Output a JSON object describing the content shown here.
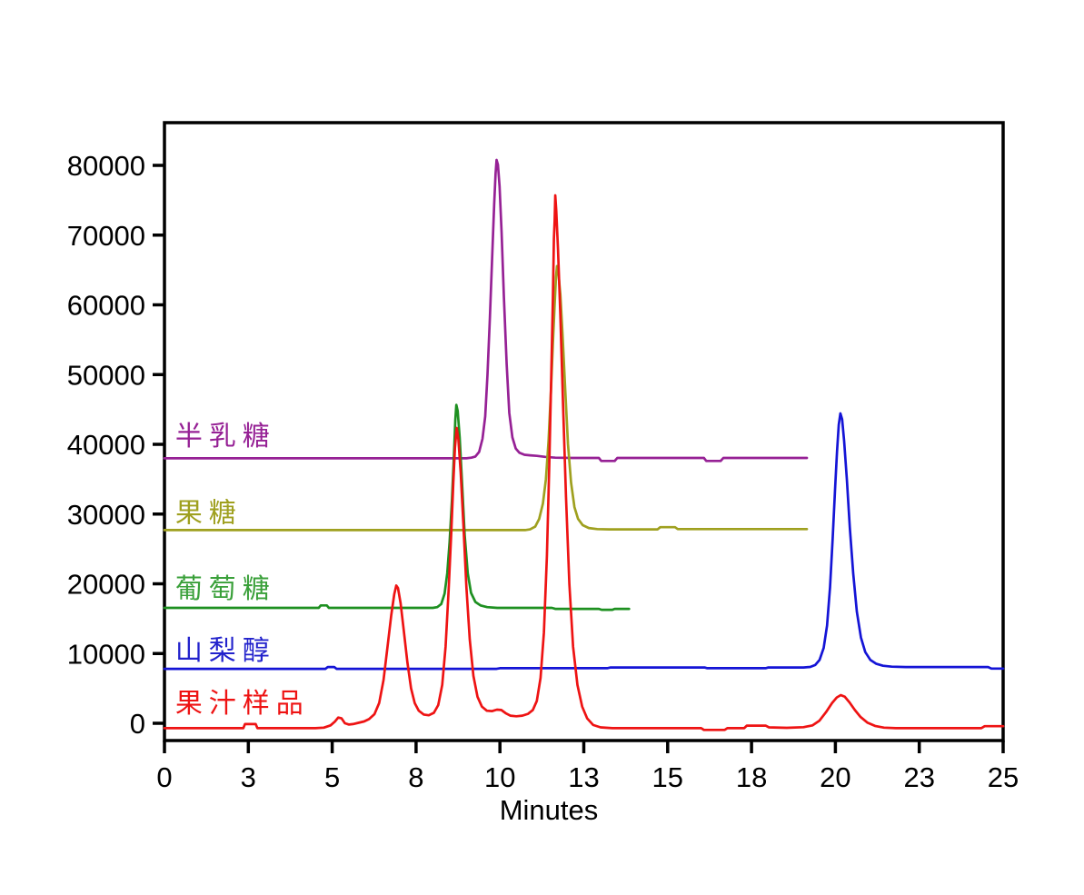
{
  "figure": {
    "background": "#ffffff",
    "axis_color": "#000000"
  },
  "chart_data": {
    "type": "line",
    "title": "",
    "xlabel": "Minutes",
    "ylabel": "",
    "xlim": [
      0,
      25
    ],
    "ylim": [
      -2475,
      86125
    ],
    "grid": false,
    "legend_position": "inline-left-above-each-trace",
    "x_ticks": {
      "positions": [
        0,
        2.5,
        5,
        7.5,
        10,
        12.5,
        15,
        17.5,
        20,
        22.5,
        25
      ],
      "labels": [
        "0",
        "3",
        "5",
        "8",
        "10",
        "13",
        "15",
        "18",
        "20",
        "23",
        "25"
      ]
    },
    "y_ticks": {
      "positions": [
        0,
        10000,
        20000,
        30000,
        40000,
        50000,
        60000,
        70000,
        80000
      ],
      "labels": [
        "0",
        "10000",
        "20000",
        "30000",
        "40000",
        "50000",
        "60000",
        "70000",
        "80000"
      ]
    },
    "series": [
      {
        "id": "galactose",
        "name": "半乳糖",
        "color": "#962195",
        "baseline": 38000,
        "peaks": [
          {
            "t": 9.9,
            "value": 80780
          }
        ],
        "points": [
          [
            0,
            38000
          ],
          [
            9.0,
            38000
          ],
          [
            9.15,
            38080
          ],
          [
            9.27,
            38250
          ],
          [
            9.38,
            38900
          ],
          [
            9.48,
            40800
          ],
          [
            9.56,
            44000
          ],
          [
            9.63,
            50000
          ],
          [
            9.7,
            58000
          ],
          [
            9.77,
            67000
          ],
          [
            9.83,
            74500
          ],
          [
            9.87,
            78800
          ],
          [
            9.9,
            80780
          ],
          [
            9.94,
            80100
          ],
          [
            9.99,
            77000
          ],
          [
            10.05,
            70500
          ],
          [
            10.12,
            61000
          ],
          [
            10.2,
            51500
          ],
          [
            10.28,
            44500
          ],
          [
            10.37,
            41000
          ],
          [
            10.47,
            39400
          ],
          [
            10.58,
            38800
          ],
          [
            10.73,
            38500
          ],
          [
            10.9,
            38420
          ],
          [
            11.1,
            38350
          ],
          [
            11.35,
            38200
          ],
          [
            11.65,
            38080
          ],
          [
            12.15,
            38050
          ],
          [
            12.95,
            38050
          ],
          [
            13.02,
            37620
          ],
          [
            13.42,
            37620
          ],
          [
            13.5,
            38050
          ],
          [
            16.08,
            38050
          ],
          [
            16.15,
            37620
          ],
          [
            16.58,
            37620
          ],
          [
            16.66,
            38050
          ],
          [
            19.15,
            38050
          ]
        ]
      },
      {
        "id": "fructose",
        "name": "果糖",
        "color": "#9fa01f",
        "baseline": 27700,
        "peaks": [
          {
            "t": 11.7,
            "value": 65550
          }
        ],
        "points": [
          [
            0,
            27700
          ],
          [
            10.75,
            27700
          ],
          [
            10.9,
            27800
          ],
          [
            11.05,
            28200
          ],
          [
            11.17,
            29300
          ],
          [
            11.28,
            31500
          ],
          [
            11.37,
            35000
          ],
          [
            11.45,
            40500
          ],
          [
            11.52,
            47500
          ],
          [
            11.58,
            54500
          ],
          [
            11.63,
            60000
          ],
          [
            11.67,
            64000
          ],
          [
            11.7,
            65550
          ],
          [
            11.74,
            64800
          ],
          [
            11.8,
            61500
          ],
          [
            11.87,
            55500
          ],
          [
            11.95,
            47500
          ],
          [
            12.03,
            40000
          ],
          [
            12.12,
            34500
          ],
          [
            12.22,
            31000
          ],
          [
            12.33,
            29300
          ],
          [
            12.47,
            28400
          ],
          [
            12.65,
            28000
          ],
          [
            12.9,
            27850
          ],
          [
            13.25,
            27800
          ],
          [
            14.7,
            27800
          ],
          [
            14.78,
            28120
          ],
          [
            15.22,
            28120
          ],
          [
            15.3,
            27850
          ],
          [
            19.15,
            27850
          ]
        ]
      },
      {
        "id": "glucose",
        "name": "葡萄糖",
        "color": "#1e9021",
        "baseline": 16550,
        "peaks": [
          {
            "t": 8.7,
            "value": 45650
          }
        ],
        "points": [
          [
            0,
            16550
          ],
          [
            4.6,
            16550
          ],
          [
            4.66,
            16900
          ],
          [
            4.84,
            16900
          ],
          [
            4.9,
            16550
          ],
          [
            8.0,
            16550
          ],
          [
            8.13,
            16650
          ],
          [
            8.25,
            17100
          ],
          [
            8.35,
            18600
          ],
          [
            8.43,
            21500
          ],
          [
            8.5,
            26000
          ],
          [
            8.57,
            32000
          ],
          [
            8.63,
            38500
          ],
          [
            8.67,
            43500
          ],
          [
            8.7,
            45650
          ],
          [
            8.74,
            44800
          ],
          [
            8.8,
            41000
          ],
          [
            8.87,
            34500
          ],
          [
            8.95,
            27000
          ],
          [
            9.04,
            21500
          ],
          [
            9.14,
            18700
          ],
          [
            9.27,
            17400
          ],
          [
            9.42,
            16900
          ],
          [
            9.62,
            16650
          ],
          [
            9.92,
            16550
          ],
          [
            11.55,
            16550
          ],
          [
            11.65,
            16400
          ],
          [
            12.95,
            16400
          ],
          [
            13.03,
            16280
          ],
          [
            13.35,
            16280
          ],
          [
            13.42,
            16400
          ],
          [
            13.85,
            16400
          ]
        ]
      },
      {
        "id": "sorbitol",
        "name": "山梨醇",
        "color": "#1414d6",
        "baseline": 7800,
        "peaks": [
          {
            "t": 20.15,
            "value": 44430
          }
        ],
        "points": [
          [
            0,
            7800
          ],
          [
            4.8,
            7800
          ],
          [
            4.87,
            8060
          ],
          [
            5.06,
            8060
          ],
          [
            5.13,
            7800
          ],
          [
            9.9,
            7800
          ],
          [
            10.0,
            7900
          ],
          [
            13.2,
            7900
          ],
          [
            13.3,
            8000
          ],
          [
            16.1,
            8000
          ],
          [
            16.18,
            7900
          ],
          [
            17.92,
            7900
          ],
          [
            18.0,
            8000
          ],
          [
            19.05,
            8000
          ],
          [
            19.25,
            8080
          ],
          [
            19.4,
            8350
          ],
          [
            19.53,
            9100
          ],
          [
            19.65,
            10800
          ],
          [
            19.75,
            14000
          ],
          [
            19.84,
            19500
          ],
          [
            19.92,
            26500
          ],
          [
            19.99,
            33500
          ],
          [
            20.05,
            39000
          ],
          [
            20.1,
            42800
          ],
          [
            20.15,
            44430
          ],
          [
            20.2,
            43600
          ],
          [
            20.26,
            40500
          ],
          [
            20.34,
            35000
          ],
          [
            20.43,
            28000
          ],
          [
            20.53,
            21500
          ],
          [
            20.64,
            16000
          ],
          [
            20.76,
            12300
          ],
          [
            20.89,
            10200
          ],
          [
            21.04,
            9100
          ],
          [
            21.21,
            8550
          ],
          [
            21.42,
            8250
          ],
          [
            21.68,
            8120
          ],
          [
            22.1,
            8060
          ],
          [
            24.55,
            8060
          ],
          [
            24.65,
            7850
          ],
          [
            25.0,
            7850
          ]
        ]
      },
      {
        "id": "juice-sample",
        "name": "果汁样品",
        "color": "#ee1313",
        "baseline": -700,
        "peaks": [
          {
            "t": 6.93,
            "value": 19750
          },
          {
            "t": 8.71,
            "value": 42350
          },
          {
            "t": 11.65,
            "value": 75700
          },
          {
            "t": 20.16,
            "value": 4040
          }
        ],
        "points": [
          [
            0,
            -700
          ],
          [
            2.35,
            -700
          ],
          [
            2.4,
            -120
          ],
          [
            2.72,
            -120
          ],
          [
            2.77,
            -700
          ],
          [
            4.5,
            -700
          ],
          [
            4.75,
            -620
          ],
          [
            4.95,
            -300
          ],
          [
            5.08,
            250
          ],
          [
            5.18,
            820
          ],
          [
            5.28,
            700
          ],
          [
            5.38,
            0
          ],
          [
            5.5,
            -180
          ],
          [
            5.62,
            -120
          ],
          [
            5.78,
            60
          ],
          [
            5.95,
            260
          ],
          [
            6.1,
            600
          ],
          [
            6.26,
            1300
          ],
          [
            6.4,
            2900
          ],
          [
            6.53,
            6200
          ],
          [
            6.65,
            11000
          ],
          [
            6.76,
            15500
          ],
          [
            6.85,
            18500
          ],
          [
            6.91,
            19750
          ],
          [
            6.96,
            19400
          ],
          [
            7.04,
            17200
          ],
          [
            7.13,
            13500
          ],
          [
            7.24,
            8800
          ],
          [
            7.35,
            5000
          ],
          [
            7.46,
            2900
          ],
          [
            7.58,
            1800
          ],
          [
            7.73,
            1250
          ],
          [
            7.88,
            1150
          ],
          [
            8.03,
            1500
          ],
          [
            8.16,
            2600
          ],
          [
            8.28,
            5500
          ],
          [
            8.38,
            11000
          ],
          [
            8.47,
            19000
          ],
          [
            8.55,
            27500
          ],
          [
            8.61,
            34500
          ],
          [
            8.66,
            39500
          ],
          [
            8.71,
            42350
          ],
          [
            8.76,
            40800
          ],
          [
            8.83,
            36000
          ],
          [
            8.91,
            28500
          ],
          [
            9.0,
            19500
          ],
          [
            9.1,
            12000
          ],
          [
            9.21,
            6800
          ],
          [
            9.33,
            3800
          ],
          [
            9.46,
            2400
          ],
          [
            9.61,
            1800
          ],
          [
            9.77,
            1750
          ],
          [
            9.91,
            1950
          ],
          [
            10.04,
            1900
          ],
          [
            10.17,
            1450
          ],
          [
            10.31,
            1100
          ],
          [
            10.49,
            1000
          ],
          [
            10.67,
            1100
          ],
          [
            10.84,
            1350
          ],
          [
            10.98,
            1900
          ],
          [
            11.1,
            3200
          ],
          [
            11.21,
            6500
          ],
          [
            11.31,
            13000
          ],
          [
            11.4,
            24000
          ],
          [
            11.47,
            37000
          ],
          [
            11.53,
            50000
          ],
          [
            11.58,
            61000
          ],
          [
            11.61,
            69500
          ],
          [
            11.63,
            72000
          ],
          [
            11.65,
            75700
          ],
          [
            11.68,
            73500
          ],
          [
            11.73,
            68000
          ],
          [
            11.8,
            58500
          ],
          [
            11.88,
            46000
          ],
          [
            11.97,
            32500
          ],
          [
            12.07,
            20000
          ],
          [
            12.18,
            11000
          ],
          [
            12.31,
            5500
          ],
          [
            12.45,
            2400
          ],
          [
            12.6,
            700
          ],
          [
            12.78,
            -250
          ],
          [
            13.0,
            -580
          ],
          [
            13.35,
            -700
          ],
          [
            16.0,
            -700
          ],
          [
            16.08,
            -950
          ],
          [
            16.7,
            -950
          ],
          [
            16.78,
            -700
          ],
          [
            17.28,
            -700
          ],
          [
            17.36,
            -340
          ],
          [
            17.92,
            -340
          ],
          [
            18.02,
            -580
          ],
          [
            18.55,
            -650
          ],
          [
            19.05,
            -560
          ],
          [
            19.32,
            -300
          ],
          [
            19.52,
            350
          ],
          [
            19.72,
            1600
          ],
          [
            19.9,
            2900
          ],
          [
            20.04,
            3700
          ],
          [
            20.16,
            4040
          ],
          [
            20.28,
            3800
          ],
          [
            20.42,
            3000
          ],
          [
            20.58,
            1900
          ],
          [
            20.75,
            900
          ],
          [
            20.95,
            100
          ],
          [
            21.18,
            -380
          ],
          [
            21.45,
            -620
          ],
          [
            21.8,
            -700
          ],
          [
            24.35,
            -700
          ],
          [
            24.45,
            -420
          ],
          [
            25.0,
            -420
          ]
        ]
      }
    ],
    "series_labels": [
      {
        "text": "半乳糖",
        "series": "galactose",
        "x": 0.32,
        "y": 41300,
        "color": "#962195"
      },
      {
        "text": "果糖",
        "series": "fructose",
        "x": 0.32,
        "y": 30300,
        "color": "#9fa01f"
      },
      {
        "text": "葡萄糖",
        "series": "glucose",
        "x": 0.32,
        "y": 19400,
        "color": "#3aa03a"
      },
      {
        "text": "山梨醇",
        "series": "sorbitol",
        "x": 0.32,
        "y": 10550,
        "color": "#2222cc"
      },
      {
        "text": "果汁样品",
        "series": "juice-sample",
        "x": 0.32,
        "y": 3000,
        "color": "#ee1313"
      }
    ]
  }
}
